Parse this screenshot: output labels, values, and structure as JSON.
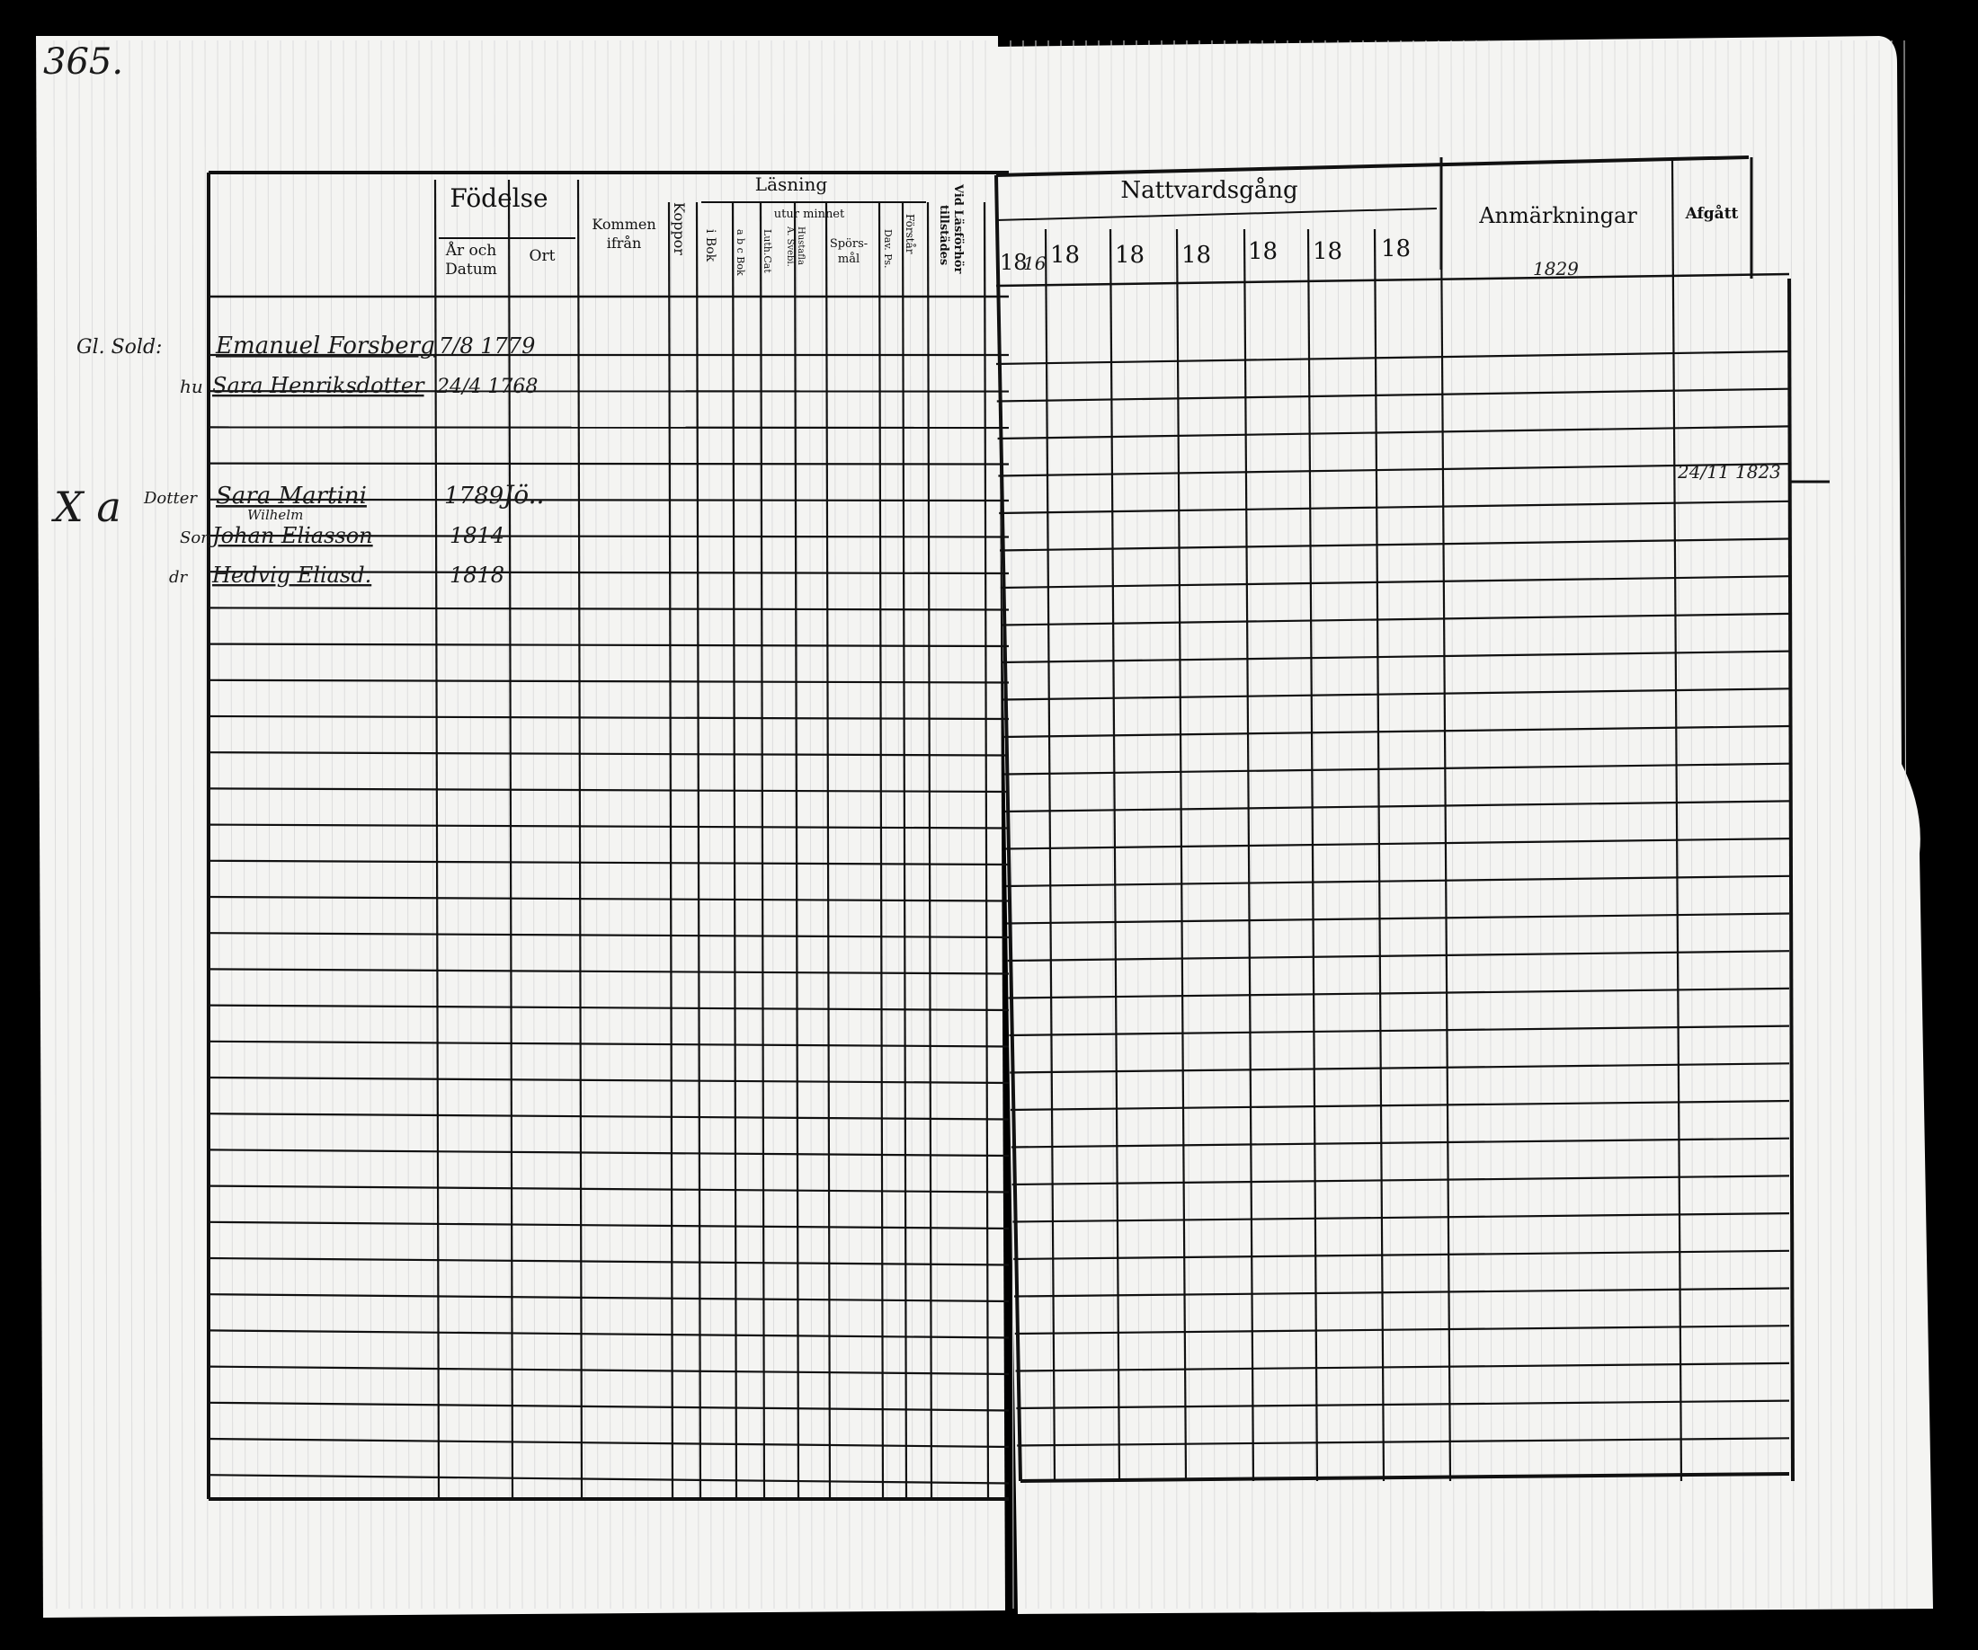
{
  "document": {
    "page_number": "365.",
    "colors": {
      "paper": "#f4f4f2",
      "ink": "#111111",
      "background": "#000000"
    }
  },
  "left_header": {
    "fodelse": "Födelse",
    "ar_och": "År och",
    "datum": "Datum",
    "ort": "Ort",
    "kommen": "Kommen",
    "ifran": "ifrån",
    "koppor": "Koppor",
    "lasning": "Läsning",
    "utur_minnet": "utur minnet",
    "i_bok": "i Bok",
    "abc_bok": "a b c Bok",
    "luth_cat": "Luth.Cat",
    "a_svebi": "A. Svebi.",
    "hustafla": "Hustafla",
    "spors": "Spörs-",
    "mal": "mål",
    "dav_ps": "Dav. Ps.",
    "forstar": "Förstår",
    "vid_lasforhor": "Vid Läsförhör",
    "tillstades": "tillstädes"
  },
  "right_header": {
    "nattvardsgang": "Nattvardsgång",
    "years": [
      "18",
      "18",
      "18",
      "18",
      "18",
      "18",
      "18"
    ],
    "first_year_suffix": "16",
    "anmarkningar": "Anmärkningar",
    "afgatt": "Afgått"
  },
  "entries": [
    {
      "margin": "Gl. Sold:",
      "name": "Emanuel Forsberg",
      "born": "7/8 1779",
      "place": ""
    },
    {
      "margin": "hu",
      "name": "Sara Henriksdotter",
      "born": "24/4 1768",
      "place": ""
    },
    {
      "margin": "Dotter",
      "name": "Sara Martini",
      "born": "1789",
      "place": "Jö.."
    },
    {
      "margin": "Son",
      "name": "Johan Eliasson",
      "born": "1814",
      "place": ""
    },
    {
      "margin": "dr",
      "name": "Hedvig Eliasd.",
      "born": "1818",
      "place": ""
    }
  ],
  "annotations": {
    "mark_xa": "X a",
    "above_name": "Wilhelm",
    "anmarkning": "1829",
    "afgatt_date": "24/11 1823"
  }
}
